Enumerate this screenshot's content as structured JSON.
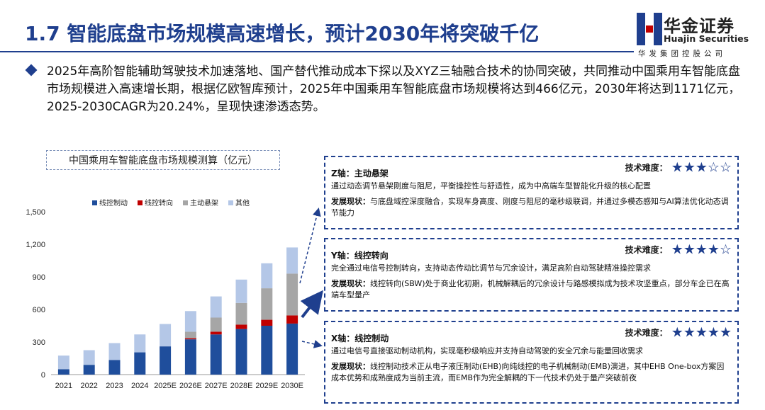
{
  "header": {
    "title": "1.7 智能底盘市场规模高速增长，预计2030年将突破千亿",
    "logo_cn": "华金证券",
    "logo_en": "Huajin Securities",
    "logo_sub": "华发集团控股公司"
  },
  "bullet": "2025年高阶智能辅助驾驶技术加速落地、国产替代推动成本下探以及XYZ三轴融合技术的协同突破，共同推动中国乘用车智能底盘市场规模进入高速增长期，根据亿欧智库预计，2025年中国乘用车智能底盘市场规模将达到466亿元，2030年将达到1171亿元，2025-2030CAGR为20.24%，呈现快速渗透态势。",
  "chart_data": {
    "type": "bar",
    "stacked": true,
    "title": "中国乘用车智能底盘市场规模测算（亿元）",
    "categories": [
      "2021",
      "2022",
      "2023",
      "2024",
      "2025E",
      "2026E",
      "2027E",
      "2028E",
      "2029E",
      "2030E"
    ],
    "series": [
      {
        "name": "线控制动",
        "color": "#1f4e9c",
        "values": [
          50,
          90,
          135,
          205,
          260,
          325,
          370,
          420,
          450,
          470
        ]
      },
      {
        "name": "线控转向",
        "color": "#c00000",
        "values": [
          0,
          0,
          0,
          0,
          0,
          10,
          25,
          40,
          55,
          75
        ]
      },
      {
        "name": "主动悬架",
        "color": "#a6a6a6",
        "values": [
          0,
          0,
          0,
          0,
          0,
          60,
          130,
          200,
          290,
          385
        ]
      },
      {
        "name": "其他",
        "color": "#b4c7e7",
        "values": [
          125,
          135,
          155,
          165,
          206,
          190,
          195,
          215,
          230,
          241
        ]
      }
    ],
    "yticks": [
      "0",
      "300",
      "600",
      "900",
      "1,200",
      "1,500"
    ],
    "ylim": [
      0,
      1500
    ],
    "legend_position": "top"
  },
  "panels": [
    {
      "title": "Z轴：主动悬架",
      "difficulty_label": "技术难度：",
      "stars": 3,
      "desc": "通过动态调节悬架刚度与阻尼，平衡操控性与舒适性，成为中高端车型智能化升级的核心配置",
      "status_label": "发展现状：",
      "status": "与底盘域控深度融合，实现车身高度、刚度与阻尼的毫秒级联调，并通过多模态感知与AI算法优化动态调节能力"
    },
    {
      "title": "Y轴：线控转向",
      "difficulty_label": "技术难度：",
      "stars": 4,
      "desc": "完全通过电信号控制转向，支持动态传动比调节与冗余设计，满足高阶自动驾驶精准操控需求",
      "status_label": "发展现状：",
      "status": "线控转向(SBW)处于商业化初期，机械解耦后的冗余设计与路感模拟成为技术攻坚重点，部分车企已在高端车型量产"
    },
    {
      "title": "X轴：线控制动",
      "difficulty_label": "技术难度：",
      "stars": 5,
      "desc": "通过电信号直接驱动制动机构，实现毫秒级响应并支持自动驾驶的安全冗余与能量回收需求",
      "status_label": "发展现状：",
      "status": "线控制动技术正从电子液压制动(EHB)向纯线控的电子机械制动(EMB)演进，其中EHB One-box方案因成本优势和成熟度成为当前主流，而EMB作为完全解耦的下一代技术仍处于量产突破前夜"
    }
  ]
}
